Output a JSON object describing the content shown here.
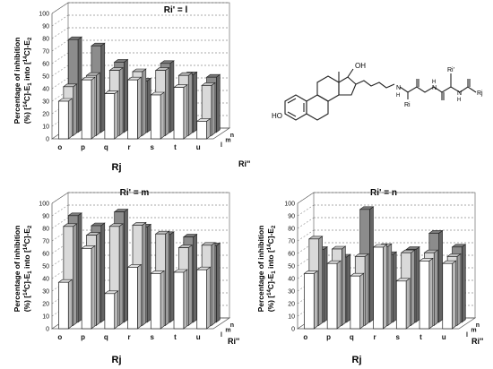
{
  "chart_data": [
    {
      "type": "bar",
      "title": "Ri' = l",
      "ylabel": "Percentage of inhibition (%) [14C]-E1 into [14C]-E2",
      "xlabel": "Rj",
      "zlabel": "Ri''",
      "ylim": [
        0,
        100
      ],
      "yticks": [
        "0",
        "10",
        "20",
        "30",
        "40",
        "50",
        "60",
        "70",
        "80",
        "90",
        "100"
      ],
      "categories": [
        "o",
        "p",
        "q",
        "r",
        "s",
        "t",
        "u"
      ],
      "series": [
        {
          "name": "l",
          "values": [
            30,
            47,
            36,
            47,
            35,
            41,
            14
          ]
        },
        {
          "name": "m",
          "values": [
            39,
            48,
            52,
            51,
            52,
            48,
            40
          ]
        },
        {
          "name": "n",
          "values": [
            74,
            69,
            56,
            41,
            55,
            46,
            44
          ]
        }
      ]
    },
    {
      "type": "bar",
      "title": "Ri' = m",
      "ylabel": "Percentage of inhibition (%) [14C]-E1 into [14C]-E2",
      "xlabel": "Rj",
      "zlabel": "Ri''",
      "ylim": [
        0,
        100
      ],
      "yticks": [
        "0",
        "10",
        "20",
        "30",
        "40",
        "50",
        "60",
        "70",
        "80",
        "90",
        "100"
      ],
      "categories": [
        "o",
        "p",
        "q",
        "r",
        "s",
        "t",
        "u"
      ],
      "series": [
        {
          "name": "l",
          "values": [
            37,
            64,
            28,
            49,
            44,
            45,
            47
          ]
        },
        {
          "name": "m",
          "values": [
            79,
            72,
            79,
            80,
            73,
            62,
            64
          ]
        },
        {
          "name": "n",
          "values": [
            85,
            77,
            88,
            76,
            70,
            68,
            61
          ]
        }
      ]
    },
    {
      "type": "bar",
      "title": "Ri' = n",
      "ylabel": "Percentage of inhibition (%) [14C]-E1 into [14C]-E2",
      "xlabel": "Rj",
      "zlabel": "Ri''",
      "ylim": [
        0,
        100
      ],
      "yticks": [
        "0",
        "10",
        "20",
        "30",
        "40",
        "50",
        "60",
        "70",
        "80",
        "90",
        "100"
      ],
      "categories": [
        "o",
        "p",
        "q",
        "r",
        "s",
        "t",
        "u"
      ],
      "series": [
        {
          "name": "l",
          "values": [
            44,
            52,
            42,
            65,
            38,
            54,
            52
          ]
        },
        {
          "name": "m",
          "values": [
            69,
            61,
            55,
            63,
            58,
            58,
            55
          ]
        },
        {
          "name": "n",
          "values": [
            58,
            52,
            90,
            54,
            58,
            71,
            60
          ]
        }
      ]
    }
  ],
  "colors": {
    "series_l": "#ffffff",
    "series_m": "#d9d9d9",
    "series_n": "#8c8c8c",
    "outline": "#222222",
    "grid": "#555555",
    "text": "#111111"
  },
  "structure": {
    "oh_top": "OH",
    "ho_left": "HO",
    "nh1": "N",
    "nh1_h": "H",
    "nh2": "N",
    "nh2_h": "H",
    "nh3": "N",
    "nh3_h": "H",
    "ri_prime_label": "Ri'",
    "ri_label": "Ri",
    "rj_label": "Rj"
  }
}
